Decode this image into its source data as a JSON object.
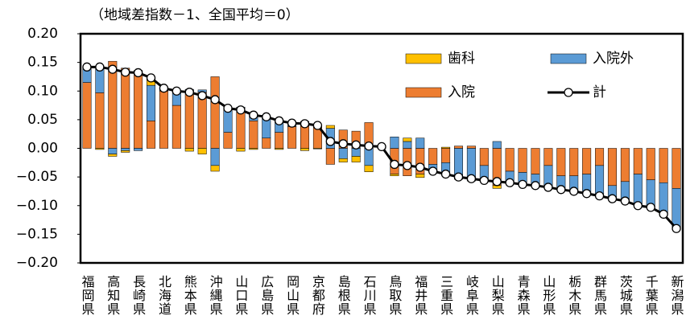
{
  "chart_data": {
    "type": "bar",
    "stacked": true,
    "title": "（地域差指数－1、全国平均＝0）",
    "categories": [
      "福岡県",
      null,
      "高知県",
      null,
      "長崎県",
      null,
      "北海道",
      null,
      "熊本県",
      null,
      "沖縄県",
      null,
      "山口県",
      null,
      "広島県",
      null,
      "岡山県",
      null,
      "京都府",
      null,
      "島根県",
      null,
      "石川県",
      null,
      "鳥取県",
      null,
      "福井県",
      null,
      "三重県",
      null,
      "岐阜県",
      null,
      "山梨県",
      null,
      "青森県",
      null,
      "山形県",
      null,
      "栃木県",
      null,
      "群馬県",
      null,
      "茨城県",
      null,
      "千葉県",
      null,
      "新潟県"
    ],
    "series": [
      {
        "name": "入院",
        "color": "#ed7d31",
        "values": [
          0.115,
          0.097,
          0.152,
          0.14,
          0.135,
          0.048,
          0.1,
          0.075,
          0.1,
          0.098,
          0.125,
          0.028,
          0.07,
          0.048,
          0.018,
          0.028,
          0.038,
          0.045,
          0.04,
          -0.028,
          0.032,
          0.03,
          0.045,
          0.003,
          -0.045,
          -0.048,
          -0.045,
          -0.028,
          -0.025,
          0.004,
          0.004,
          -0.03,
          -0.065,
          -0.04,
          -0.042,
          -0.045,
          -0.03,
          -0.048,
          -0.048,
          -0.045,
          -0.03,
          -0.065,
          -0.058,
          -0.045,
          -0.055,
          -0.06,
          -0.07
        ]
      },
      {
        "name": "入院外",
        "color": "#5b9bd5",
        "values": [
          0.025,
          0.047,
          -0.01,
          -0.004,
          -0.004,
          0.062,
          0.005,
          0.025,
          0.003,
          0.004,
          -0.03,
          0.042,
          0.002,
          0.012,
          0.037,
          0.022,
          0.006,
          0.002,
          0.001,
          0.035,
          -0.018,
          -0.014,
          -0.03,
          0.0,
          0.02,
          0.012,
          0.018,
          -0.01,
          -0.022,
          -0.054,
          -0.057,
          -0.026,
          0.012,
          -0.02,
          -0.018,
          -0.02,
          -0.038,
          -0.024,
          -0.027,
          -0.034,
          -0.053,
          -0.023,
          -0.034,
          -0.055,
          -0.048,
          -0.055,
          -0.07
        ]
      },
      {
        "name": "歯科",
        "color": "#ffc000",
        "values": [
          0.002,
          -0.002,
          -0.004,
          -0.003,
          0.001,
          0.013,
          0.0,
          0.0,
          -0.005,
          -0.01,
          -0.01,
          0.0,
          -0.005,
          -0.002,
          0.0,
          -0.002,
          0.0,
          -0.004,
          -0.001,
          0.005,
          -0.006,
          -0.01,
          -0.011,
          0.0,
          -0.003,
          0.006,
          -0.006,
          -0.002,
          0.002,
          0.0,
          0.0,
          0.0,
          -0.005,
          0.0,
          -0.003,
          0.0,
          0.0,
          0.0,
          0.0,
          0.0,
          0.0,
          0.0,
          0.0,
          0.0,
          0.0,
          0.0,
          0.0
        ]
      },
      {
        "name": "計",
        "type": "line",
        "color": "#000000",
        "values": [
          0.142,
          0.142,
          0.138,
          0.133,
          0.132,
          0.123,
          0.105,
          0.1,
          0.098,
          0.092,
          0.085,
          0.07,
          0.067,
          0.058,
          0.055,
          0.048,
          0.044,
          0.043,
          0.04,
          0.012,
          0.008,
          0.006,
          0.004,
          0.003,
          -0.028,
          -0.03,
          -0.033,
          -0.04,
          -0.045,
          -0.05,
          -0.053,
          -0.056,
          -0.058,
          -0.06,
          -0.063,
          -0.065,
          -0.068,
          -0.072,
          -0.075,
          -0.079,
          -0.083,
          -0.088,
          -0.092,
          -0.1,
          -0.103,
          -0.115,
          -0.14
        ]
      }
    ],
    "ylim": [
      -0.2,
      0.2
    ],
    "yticks": [
      {
        "value": 0.2,
        "label": "0.20"
      },
      {
        "value": 0.15,
        "label": "0.15"
      },
      {
        "value": 0.1,
        "label": "0.10"
      },
      {
        "value": 0.05,
        "label": "0.05"
      },
      {
        "value": 0,
        "label": "0.00"
      },
      {
        "value": -0.05,
        "label": "−0.05"
      },
      {
        "value": -0.1,
        "label": "−0.10"
      },
      {
        "value": -0.15,
        "label": "−0.15"
      },
      {
        "value": -0.2,
        "label": "−0.20"
      }
    ],
    "grid": false,
    "legend": "upper right"
  }
}
